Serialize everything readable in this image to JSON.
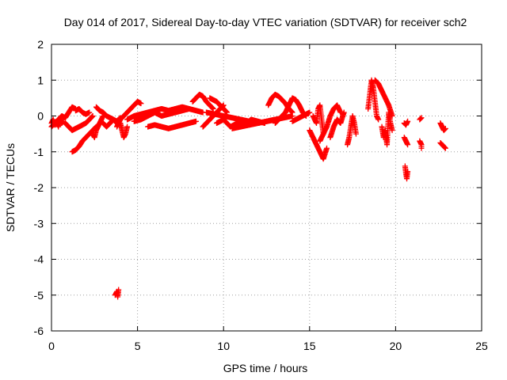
{
  "chart_data": {
    "type": "scatter",
    "title": "Day 014 of 2017, Sidereal Day-to-day VTEC variation (SDTVAR) for receiver sch2",
    "xlabel": "GPS time / hours",
    "ylabel": "SDTVAR / TECUs",
    "xlim": [
      0,
      25
    ],
    "ylim": [
      -6,
      2
    ],
    "xticks": [
      0,
      5,
      10,
      15,
      20,
      25
    ],
    "yticks": [
      -6,
      -5,
      -4,
      -3,
      -2,
      -1,
      0,
      1,
      2
    ],
    "grid": true,
    "marker": "+",
    "marker_color": "#ff0000",
    "series": [
      {
        "name": "sch2",
        "segments": [
          {
            "x": [
              0.0,
              0.1,
              0.2,
              0.3,
              0.4,
              0.5,
              0.6,
              0.7
            ],
            "y": [
              -0.2,
              -0.1,
              -0.25,
              -0.15,
              -0.3,
              -0.1,
              -0.2,
              -0.15
            ]
          },
          {
            "x": [
              0.0,
              0.2,
              0.4,
              0.6,
              0.8,
              1.0,
              1.2,
              1.4
            ],
            "y": [
              -0.3,
              -0.2,
              -0.1,
              0.0,
              -0.05,
              0.1,
              0.25,
              0.2
            ]
          },
          {
            "x": [
              0.8,
              1.0,
              1.2,
              1.4,
              1.6,
              1.8,
              2.0,
              2.2,
              2.4
            ],
            "y": [
              -0.2,
              -0.3,
              -0.4,
              -0.35,
              -0.3,
              -0.25,
              -0.2,
              -0.1,
              0.0
            ]
          },
          {
            "x": [
              1.2,
              1.4,
              1.6,
              1.8,
              2.0,
              2.2,
              2.4,
              2.6
            ],
            "y": [
              -1.0,
              -0.95,
              -0.85,
              -0.7,
              -0.6,
              -0.5,
              -0.4,
              -0.3
            ]
          },
          {
            "x": [
              1.4,
              1.6,
              1.8,
              2.0,
              2.2
            ],
            "y": [
              0.15,
              0.2,
              0.1,
              0.05,
              0.1
            ]
          },
          {
            "x": [
              2.4,
              2.5,
              2.6,
              2.7,
              2.8,
              2.9,
              3.0
            ],
            "y": [
              -0.5,
              -0.6,
              -0.4,
              -0.3,
              -0.2,
              -0.1,
              0.0
            ]
          },
          {
            "x": [
              2.6,
              2.8,
              3.0,
              3.2,
              3.4,
              3.6,
              3.8
            ],
            "y": [
              0.25,
              0.15,
              0.1,
              0.0,
              -0.05,
              -0.1,
              -0.2
            ]
          },
          {
            "x": [
              3.0,
              3.2,
              3.4,
              3.6,
              3.8,
              4.0
            ],
            "y": [
              -0.2,
              -0.3,
              -0.2,
              -0.1,
              -0.15,
              -0.05
            ]
          },
          {
            "x": [
              3.7,
              3.75,
              3.8,
              3.85,
              3.9
            ],
            "y": [
              -5.0,
              -4.95,
              -4.9,
              -5.05,
              -4.85
            ]
          },
          {
            "x": [
              3.8,
              4.0,
              4.2,
              4.4,
              4.6,
              4.8,
              5.0,
              5.2
            ],
            "y": [
              -0.3,
              -0.1,
              0.0,
              0.1,
              0.2,
              0.3,
              0.4,
              0.35
            ]
          },
          {
            "x": [
              4.0,
              4.1,
              4.2,
              4.3,
              4.4
            ],
            "y": [
              -0.2,
              -0.4,
              -0.6,
              -0.5,
              -0.3
            ]
          },
          {
            "x": [
              4.4,
              4.8,
              5.2,
              5.6,
              6.0,
              6.4,
              6.8,
              7.2,
              7.6,
              8.0
            ],
            "y": [
              -0.1,
              0.0,
              0.05,
              0.1,
              0.15,
              0.2,
              0.15,
              0.2,
              0.25,
              0.2
            ]
          },
          {
            "x": [
              4.8,
              5.2,
              5.6,
              6.0,
              6.4,
              6.8,
              7.2,
              7.6,
              8.0,
              8.4,
              8.8
            ],
            "y": [
              -0.15,
              -0.1,
              0.0,
              0.1,
              0.0,
              0.05,
              0.1,
              0.15,
              0.2,
              0.15,
              0.1
            ]
          },
          {
            "x": [
              5.6,
              6.0,
              6.4,
              6.8,
              7.2,
              7.6,
              8.0,
              8.4
            ],
            "y": [
              -0.3,
              -0.25,
              -0.3,
              -0.35,
              -0.3,
              -0.25,
              -0.2,
              -0.15
            ]
          },
          {
            "x": [
              8.2,
              8.4,
              8.6,
              8.8,
              9.0,
              9.2,
              9.4
            ],
            "y": [
              0.4,
              0.5,
              0.6,
              0.55,
              0.4,
              0.3,
              0.2
            ]
          },
          {
            "x": [
              8.8,
              9.0,
              9.2,
              9.4,
              9.6,
              9.8,
              10.0
            ],
            "y": [
              -0.3,
              -0.2,
              -0.1,
              0.0,
              0.1,
              0.2,
              0.3
            ]
          },
          {
            "x": [
              9.2,
              9.4,
              9.6,
              9.8,
              10.0,
              10.2
            ],
            "y": [
              0.5,
              0.45,
              0.4,
              0.3,
              0.2,
              0.1
            ]
          },
          {
            "x": [
              9.0,
              9.5,
              10.0,
              10.5,
              11.0,
              11.5,
              12.0,
              12.5,
              13.0,
              13.5,
              14.0
            ],
            "y": [
              0.1,
              0.05,
              0.0,
              -0.05,
              -0.1,
              -0.15,
              -0.2,
              -0.15,
              -0.1,
              -0.05,
              0.0
            ]
          },
          {
            "x": [
              9.6,
              10.0,
              10.4,
              10.8,
              11.2,
              11.6,
              12.0,
              12.4
            ],
            "y": [
              -0.2,
              -0.1,
              -0.3,
              -0.2,
              -0.25,
              -0.1,
              -0.15,
              -0.2
            ]
          },
          {
            "x": [
              10.5,
              11.0,
              11.5,
              12.0,
              12.5,
              13.0
            ],
            "y": [
              -0.35,
              -0.3,
              -0.25,
              -0.2,
              -0.15,
              -0.1
            ]
          },
          {
            "x": [
              12.6,
              12.8,
              13.0,
              13.2,
              13.4,
              13.6,
              13.8,
              14.0
            ],
            "y": [
              0.3,
              0.5,
              0.6,
              0.55,
              0.45,
              0.35,
              0.2,
              0.1
            ]
          },
          {
            "x": [
              13.0,
              13.2,
              13.4,
              13.6,
              13.8,
              14.0,
              14.2,
              14.4,
              14.6,
              14.8
            ],
            "y": [
              -0.2,
              -0.1,
              0.0,
              0.1,
              0.3,
              0.5,
              0.45,
              0.3,
              0.1,
              0.0
            ]
          },
          {
            "x": [
              14.0,
              14.2,
              14.4,
              14.6,
              14.8,
              15.0
            ],
            "y": [
              -0.15,
              -0.1,
              -0.05,
              0.0,
              0.05,
              0.1
            ]
          },
          {
            "x": [
              15.0,
              15.2,
              15.4,
              15.6,
              15.8,
              16.0
            ],
            "y": [
              -0.4,
              -0.6,
              -0.8,
              -1.0,
              -1.2,
              -0.9
            ]
          },
          {
            "x": [
              15.2,
              15.4,
              15.5,
              15.6,
              15.7,
              15.8
            ],
            "y": [
              0.0,
              -0.2,
              0.2,
              0.3,
              -0.1,
              -0.5
            ]
          },
          {
            "x": [
              15.6,
              15.8,
              16.0,
              16.2,
              16.4,
              16.6,
              16.8
            ],
            "y": [
              -0.7,
              -0.5,
              -0.3,
              0.0,
              0.2,
              0.3,
              0.1
            ]
          },
          {
            "x": [
              16.2,
              16.4,
              16.6,
              16.8,
              17.0
            ],
            "y": [
              -0.6,
              -0.3,
              -0.1,
              -0.2,
              0.1
            ]
          },
          {
            "x": [
              17.2,
              17.3,
              17.4,
              17.5,
              17.6,
              17.7
            ],
            "y": [
              -0.8,
              -0.6,
              -0.3,
              0.0,
              -0.2,
              -0.5
            ]
          },
          {
            "x": [
              18.4,
              18.5,
              18.6,
              18.7,
              18.8,
              18.9,
              19.0
            ],
            "y": [
              0.2,
              0.6,
              1.0,
              0.8,
              0.4,
              0.0,
              -0.1
            ]
          },
          {
            "x": [
              18.8,
              19.0,
              19.2,
              19.4,
              19.6,
              19.8
            ],
            "y": [
              1.0,
              0.9,
              0.7,
              0.5,
              0.3,
              0.0
            ]
          },
          {
            "x": [
              19.2,
              19.3,
              19.4,
              19.5,
              19.6,
              19.7,
              19.8
            ],
            "y": [
              -0.3,
              -0.6,
              -0.4,
              -0.8,
              0.1,
              -0.2,
              -0.4
            ]
          },
          {
            "x": [
              20.5,
              20.6,
              20.7
            ],
            "y": [
              -0.2,
              -0.25,
              -0.15
            ]
          },
          {
            "x": [
              20.5,
              20.6,
              20.7
            ],
            "y": [
              -0.6,
              -0.7,
              -0.8
            ]
          },
          {
            "x": [
              20.55,
              20.6,
              20.65,
              20.7
            ],
            "y": [
              -1.4,
              -1.6,
              -1.75,
              -1.55
            ]
          },
          {
            "x": [
              21.4,
              21.5
            ],
            "y": [
              -0.1,
              -0.05
            ]
          },
          {
            "x": [
              21.4,
              21.5,
              21.5
            ],
            "y": [
              -0.7,
              -0.8,
              -0.9
            ]
          },
          {
            "x": [
              22.6,
              22.7,
              22.8,
              22.9
            ],
            "y": [
              -0.2,
              -0.3,
              -0.4,
              -0.35
            ]
          },
          {
            "x": [
              22.6,
              22.7,
              22.8,
              22.9
            ],
            "y": [
              -0.75,
              -0.8,
              -0.85,
              -0.9
            ]
          }
        ]
      }
    ]
  }
}
